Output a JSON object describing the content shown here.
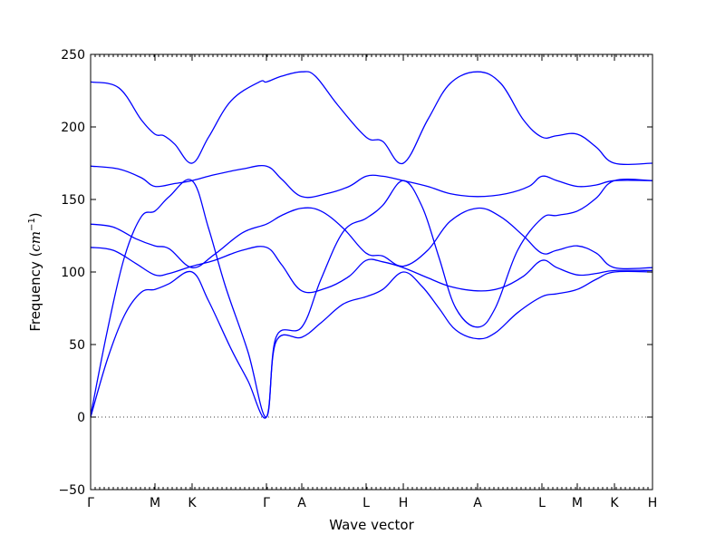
{
  "chart_data": {
    "type": "line",
    "xlabel": "Wave vector",
    "ylabel": "Frequency (cm⁻¹)",
    "ylabel_parts": {
      "prefix": "Frequency (",
      "unit_base": "cm",
      "unit_exp": "−1",
      "suffix": ")"
    },
    "ylim": [
      -50,
      250
    ],
    "yticks": [
      -50,
      0,
      50,
      100,
      150,
      200,
      250
    ],
    "xlim": [
      0,
      1
    ],
    "grid": false,
    "legend": "none",
    "line_color": "#0000ff",
    "zero_line": {
      "y": 0,
      "style": "dotted",
      "color": "#000000"
    },
    "high_symmetry_points": [
      {
        "label": "Γ",
        "x": 0.0
      },
      {
        "label": "M",
        "x": 0.1145
      },
      {
        "label": "K",
        "x": 0.1806
      },
      {
        "label": "Γ",
        "x": 0.3129
      },
      {
        "label": "A",
        "x": 0.3758
      },
      {
        "label": "L",
        "x": 0.4903
      },
      {
        "label": "H",
        "x": 0.5565
      },
      {
        "label": "A",
        "x": 0.6887
      },
      {
        "label": "L",
        "x": 0.8032
      },
      {
        "label": "M",
        "x": 0.8661
      },
      {
        "label": "K",
        "x": 0.9323
      },
      {
        "label": "H",
        "x": 1.0
      }
    ],
    "series": [
      {
        "values": [
          [
            0,
            231
          ],
          [
            0.05,
            227
          ],
          [
            0.09,
            205
          ],
          [
            0.1145,
            195
          ],
          [
            0.13,
            194
          ],
          [
            0.15,
            188
          ],
          [
            0.1806,
            175
          ],
          [
            0.21,
            193
          ],
          [
            0.25,
            218
          ],
          [
            0.3,
            231
          ],
          [
            0.3129,
            231
          ],
          [
            0.34,
            235
          ],
          [
            0.3758,
            238
          ],
          [
            0.4,
            235
          ],
          [
            0.44,
            215
          ],
          [
            0.4903,
            193
          ],
          [
            0.52,
            190
          ],
          [
            0.5565,
            175
          ],
          [
            0.6,
            205
          ],
          [
            0.64,
            230
          ],
          [
            0.6887,
            238
          ],
          [
            0.73,
            230
          ],
          [
            0.77,
            205
          ],
          [
            0.8032,
            193
          ],
          [
            0.83,
            194
          ],
          [
            0.8661,
            195
          ],
          [
            0.9,
            186
          ],
          [
            0.9323,
            175
          ],
          [
            1.0,
            175
          ]
        ]
      },
      {
        "values": [
          [
            0,
            173
          ],
          [
            0.05,
            171
          ],
          [
            0.09,
            165
          ],
          [
            0.1145,
            159
          ],
          [
            0.15,
            161
          ],
          [
            0.1806,
            163
          ],
          [
            0.22,
            167
          ],
          [
            0.27,
            171
          ],
          [
            0.3129,
            173
          ],
          [
            0.34,
            164
          ],
          [
            0.3758,
            152
          ],
          [
            0.42,
            154
          ],
          [
            0.46,
            159
          ],
          [
            0.4903,
            166
          ],
          [
            0.52,
            166
          ],
          [
            0.5565,
            163
          ],
          [
            0.6,
            159
          ],
          [
            0.64,
            154
          ],
          [
            0.6887,
            152
          ],
          [
            0.74,
            154
          ],
          [
            0.78,
            159
          ],
          [
            0.8032,
            166
          ],
          [
            0.83,
            163
          ],
          [
            0.8661,
            159
          ],
          [
            0.9,
            160
          ],
          [
            0.9323,
            163
          ],
          [
            1.0,
            163
          ]
        ]
      },
      {
        "values": [
          [
            0,
            1
          ],
          [
            0.03,
            60
          ],
          [
            0.06,
            110
          ],
          [
            0.09,
            138
          ],
          [
            0.1145,
            142
          ],
          [
            0.14,
            152
          ],
          [
            0.1806,
            163
          ],
          [
            0.21,
            130
          ],
          [
            0.24,
            90
          ],
          [
            0.28,
            45
          ],
          [
            0.3129,
            0
          ],
          [
            0.33,
            55
          ],
          [
            0.3758,
            62
          ],
          [
            0.41,
            95
          ],
          [
            0.45,
            128
          ],
          [
            0.4903,
            137
          ],
          [
            0.52,
            146
          ],
          [
            0.5565,
            163
          ],
          [
            0.59,
            145
          ],
          [
            0.62,
            110
          ],
          [
            0.65,
            75
          ],
          [
            0.6887,
            62
          ],
          [
            0.72,
            75
          ],
          [
            0.76,
            115
          ],
          [
            0.8032,
            137
          ],
          [
            0.83,
            139
          ],
          [
            0.8661,
            142
          ],
          [
            0.9,
            151
          ],
          [
            0.9323,
            163
          ],
          [
            1.0,
            163
          ]
        ]
      },
      {
        "values": [
          [
            0,
            133
          ],
          [
            0.04,
            131
          ],
          [
            0.08,
            123
          ],
          [
            0.1145,
            118
          ],
          [
            0.14,
            116
          ],
          [
            0.1806,
            103
          ],
          [
            0.22,
            112
          ],
          [
            0.27,
            127
          ],
          [
            0.3129,
            133
          ],
          [
            0.34,
            139
          ],
          [
            0.3758,
            144
          ],
          [
            0.41,
            142
          ],
          [
            0.45,
            130
          ],
          [
            0.4903,
            113
          ],
          [
            0.52,
            111
          ],
          [
            0.5565,
            104
          ],
          [
            0.6,
            115
          ],
          [
            0.64,
            135
          ],
          [
            0.6887,
            144
          ],
          [
            0.73,
            138
          ],
          [
            0.77,
            125
          ],
          [
            0.8032,
            113
          ],
          [
            0.83,
            115
          ],
          [
            0.8661,
            118
          ],
          [
            0.9,
            113
          ],
          [
            0.9323,
            103
          ],
          [
            1.0,
            103
          ]
        ]
      },
      {
        "values": [
          [
            0,
            117
          ],
          [
            0.04,
            115
          ],
          [
            0.08,
            106
          ],
          [
            0.1145,
            98
          ],
          [
            0.14,
            99
          ],
          [
            0.1806,
            104
          ],
          [
            0.22,
            108
          ],
          [
            0.27,
            115
          ],
          [
            0.3129,
            117
          ],
          [
            0.34,
            105
          ],
          [
            0.3758,
            87
          ],
          [
            0.42,
            89
          ],
          [
            0.46,
            97
          ],
          [
            0.4903,
            108
          ],
          [
            0.52,
            107
          ],
          [
            0.5565,
            103
          ],
          [
            0.6,
            96
          ],
          [
            0.64,
            90
          ],
          [
            0.6887,
            87
          ],
          [
            0.73,
            89
          ],
          [
            0.77,
            97
          ],
          [
            0.8032,
            108
          ],
          [
            0.83,
            103
          ],
          [
            0.8661,
            98
          ],
          [
            0.9,
            99
          ],
          [
            0.9323,
            101
          ],
          [
            1.0,
            101
          ]
        ]
      },
      {
        "values": [
          [
            0,
            0
          ],
          [
            0.03,
            40
          ],
          [
            0.06,
            70
          ],
          [
            0.09,
            86
          ],
          [
            0.1145,
            88
          ],
          [
            0.14,
            92
          ],
          [
            0.1806,
            100
          ],
          [
            0.21,
            80
          ],
          [
            0.25,
            47
          ],
          [
            0.28,
            25
          ],
          [
            0.3129,
            0
          ],
          [
            0.33,
            52
          ],
          [
            0.3758,
            55
          ],
          [
            0.41,
            65
          ],
          [
            0.45,
            78
          ],
          [
            0.4903,
            83
          ],
          [
            0.52,
            88
          ],
          [
            0.5565,
            100
          ],
          [
            0.59,
            90
          ],
          [
            0.62,
            75
          ],
          [
            0.65,
            60
          ],
          [
            0.6887,
            54
          ],
          [
            0.72,
            58
          ],
          [
            0.76,
            72
          ],
          [
            0.8032,
            83
          ],
          [
            0.83,
            85
          ],
          [
            0.8661,
            88
          ],
          [
            0.9,
            95
          ],
          [
            0.9323,
            100
          ],
          [
            1.0,
            100
          ]
        ]
      }
    ]
  }
}
